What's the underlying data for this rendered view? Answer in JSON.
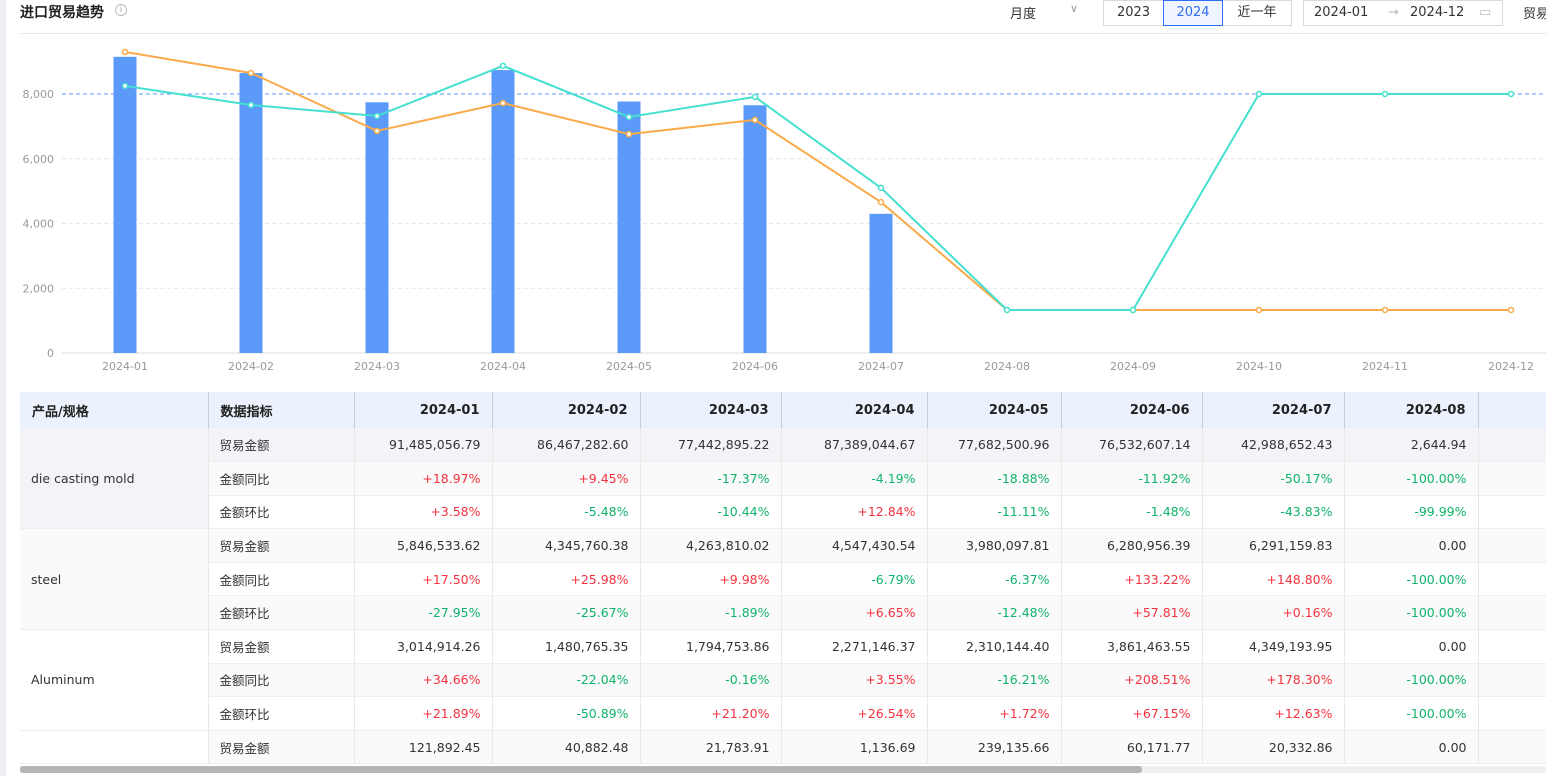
{
  "header": {
    "title": "进口贸易趋势",
    "info_icon": "info-circle-icon",
    "period_select": "月度",
    "year_buttons": [
      "2023",
      "2024",
      "近一年"
    ],
    "active_year": "2024",
    "range_start": "2024-01",
    "range_end": "2024-12",
    "range_separator": "→",
    "cut_label": "贸易"
  },
  "colors": {
    "bar": "#5b9af8",
    "line_orange": "#fbaa4a",
    "line_cyan": "#45e0d0",
    "markline": "#5b9af8",
    "up": "#f5333f",
    "down": "#0fb36b",
    "accent": "#2f6ff2"
  },
  "chart_data": {
    "type": "bar+line",
    "categories": [
      "2024-01",
      "2024-02",
      "2024-03",
      "2024-04",
      "2024-05",
      "2024-06",
      "2024-07",
      "2024-08",
      "2024-09",
      "2024-10",
      "2024-11",
      "2024-12"
    ],
    "ylim": [
      0,
      10000
    ],
    "yticks": [
      "0",
      "2,000",
      "4,000",
      "6,000",
      "8,000"
    ],
    "grid": true,
    "markline": 8000,
    "series": [
      {
        "type": "bar",
        "values": [
          9149,
          8647,
          7744,
          8739,
          7768,
          7653,
          4299,
          0.26,
          null,
          null,
          null,
          null
        ]
      },
      {
        "type": "line",
        "color": "orange",
        "values": [
          9300,
          8650,
          6860,
          7720,
          6760,
          7200,
          4660,
          1330,
          1330,
          1330,
          1330,
          1330
        ]
      },
      {
        "type": "line",
        "color": "cyan",
        "values": [
          8250,
          7660,
          7320,
          8870,
          7290,
          7910,
          5100,
          1330,
          1330,
          8000,
          8000,
          8000
        ]
      }
    ]
  },
  "table": {
    "headers": [
      "产品/规格",
      "数据指标",
      "2024-01",
      "2024-02",
      "2024-03",
      "2024-04",
      "2024-05",
      "2024-06",
      "2024-07",
      "2024-08",
      ""
    ],
    "groups": [
      {
        "product": "die casting mold",
        "rows": [
          {
            "metric": "贸易金额",
            "values": [
              "91,485,056.79",
              "86,467,282.60",
              "77,442,895.22",
              "87,389,044.67",
              "77,682,500.96",
              "76,532,607.14",
              "42,988,652.43",
              "2,644.94"
            ]
          },
          {
            "metric": "金额同比",
            "values": [
              "+18.97%",
              "+9.45%",
              "-17.37%",
              "-4.19%",
              "-18.88%",
              "-11.92%",
              "-50.17%",
              "-100.00%"
            ]
          },
          {
            "metric": "金额环比",
            "values": [
              "+3.58%",
              "-5.48%",
              "-10.44%",
              "+12.84%",
              "-11.11%",
              "-1.48%",
              "-43.83%",
              "-99.99%"
            ]
          }
        ]
      },
      {
        "product": "steel",
        "rows": [
          {
            "metric": "贸易金额",
            "values": [
              "5,846,533.62",
              "4,345,760.38",
              "4,263,810.02",
              "4,547,430.54",
              "3,980,097.81",
              "6,280,956.39",
              "6,291,159.83",
              "0.00"
            ]
          },
          {
            "metric": "金额同比",
            "values": [
              "+17.50%",
              "+25.98%",
              "+9.98%",
              "-6.79%",
              "-6.37%",
              "+133.22%",
              "+148.80%",
              "-100.00%"
            ]
          },
          {
            "metric": "金额环比",
            "values": [
              "-27.95%",
              "-25.67%",
              "-1.89%",
              "+6.65%",
              "-12.48%",
              "+57.81%",
              "+0.16%",
              "-100.00%"
            ]
          }
        ]
      },
      {
        "product": "Aluminum",
        "rows": [
          {
            "metric": "贸易金额",
            "values": [
              "3,014,914.26",
              "1,480,765.35",
              "1,794,753.86",
              "2,271,146.37",
              "2,310,144.40",
              "3,861,463.55",
              "4,349,193.95",
              "0.00"
            ]
          },
          {
            "metric": "金额同比",
            "values": [
              "+34.66%",
              "-22.04%",
              "-0.16%",
              "+3.55%",
              "-16.21%",
              "+208.51%",
              "+178.30%",
              "-100.00%"
            ]
          },
          {
            "metric": "金额环比",
            "values": [
              "+21.89%",
              "-50.89%",
              "+21.20%",
              "+26.54%",
              "+1.72%",
              "+67.15%",
              "+12.63%",
              "-100.00%"
            ]
          }
        ]
      },
      {
        "product": "",
        "rows": [
          {
            "metric": "贸易金额",
            "values": [
              "121,892.45",
              "40,882.48",
              "21,783.91",
              "1,136.69",
              "239,135.66",
              "60,171.77",
              "20,332.86",
              "0.00"
            ]
          }
        ]
      }
    ]
  }
}
